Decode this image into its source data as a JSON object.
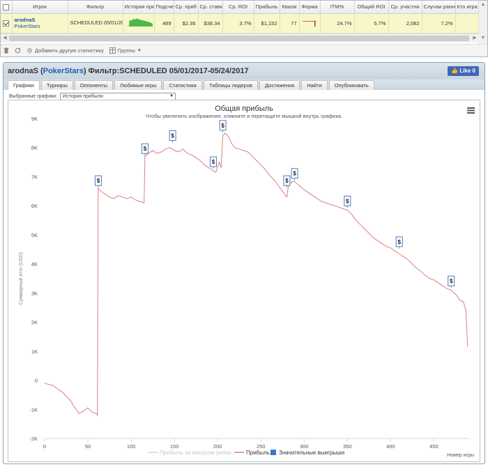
{
  "stats": {
    "columns": [
      "Игрок",
      "Фильтр",
      "История при",
      "Подсчет",
      "Ср. приб",
      "Ср. ставк",
      "Ср. ROI",
      "Прибыль",
      "Квали",
      "Форма",
      "ITM%",
      "Общий ROI",
      "Ср. участни",
      "Случаи ранне",
      "Кто игра"
    ],
    "row": {
      "checked": true,
      "player": "arodnaS",
      "site": "PokerStars",
      "filter": "SCHEDULED 05/01/2017-05/24/2017",
      "count": "489",
      "avg_profit": "$2.36",
      "avg_stake": "$38.34",
      "avg_roi": "3.7%",
      "profit": "$1,152",
      "quali": "77",
      "itm": "24.7%",
      "total_roi": "5.7%",
      "avg_entrants": "2,082",
      "early": "7.2%"
    }
  },
  "toolbar": {
    "add_stat": "Добавить другую статистику",
    "groups": "Группы"
  },
  "report": {
    "player": "arodnaS",
    "site": "PokerStars",
    "filter_label": "Фильтр:",
    "filter_value": "SCHEDULED 05/01/2017-05/24/2017",
    "like_label": "Like 0",
    "tabs": [
      "Графики",
      "Турниры",
      "Оппоненты",
      "Любимые игры",
      "Статистика",
      "Таблицы лидеров",
      "Достижения",
      "Найти",
      "Опубликовать"
    ],
    "active_tab": 0,
    "chart_select_label": "Выбранные графики:",
    "chart_select_value": "История прибыли"
  },
  "colors": {
    "line": "#d98080",
    "marker_border": "#4a7cc7",
    "legend_big_win": "#3a78c9",
    "axis_text": "#555555"
  },
  "chart_data": {
    "type": "line",
    "title": "Общая прибыль",
    "subtitle": "Чтобы увеличить изображение, кликните и перетащите мышкой внутрь графика.",
    "xlabel": "Номер игры",
    "ylabel": "Суммарный итог (USD)",
    "xlim": [
      0,
      490
    ],
    "ylim": [
      -2000,
      9000
    ],
    "x_ticks": [
      0,
      50,
      100,
      150,
      200,
      250,
      300,
      350,
      400,
      450
    ],
    "y_ticks": [
      -2000,
      -1000,
      0,
      1000,
      2000,
      3000,
      4000,
      5000,
      6000,
      7000,
      8000,
      9000
    ],
    "y_tick_labels": [
      "-2K",
      "-1K",
      "0",
      "1K",
      "2K",
      "3K",
      "4K",
      "5K",
      "6K",
      "7K",
      "8K",
      "9K"
    ],
    "legend": [
      "Прибыль за минусом рейка",
      "Прибыль",
      "Значительные выигрыши"
    ],
    "series": [
      {
        "name": "Прибыль",
        "points": [
          [
            0,
            -100
          ],
          [
            5,
            -150
          ],
          [
            10,
            -180
          ],
          [
            15,
            -300
          ],
          [
            20,
            -400
          ],
          [
            25,
            -550
          ],
          [
            30,
            -700
          ],
          [
            35,
            -950
          ],
          [
            40,
            -1150
          ],
          [
            45,
            -1050
          ],
          [
            50,
            -950
          ],
          [
            55,
            -1100
          ],
          [
            60,
            -1150
          ],
          [
            61,
            -1200
          ],
          [
            62,
            6600
          ],
          [
            65,
            6500
          ],
          [
            70,
            6400
          ],
          [
            75,
            6300
          ],
          [
            80,
            6250
          ],
          [
            85,
            6350
          ],
          [
            90,
            6300
          ],
          [
            95,
            6250
          ],
          [
            100,
            6300
          ],
          [
            105,
            6200
          ],
          [
            110,
            6150
          ],
          [
            115,
            6100
          ],
          [
            116,
            7700
          ],
          [
            120,
            7800
          ],
          [
            125,
            7900
          ],
          [
            130,
            7800
          ],
          [
            135,
            7850
          ],
          [
            140,
            7950
          ],
          [
            145,
            8000
          ],
          [
            150,
            7900
          ],
          [
            155,
            7850
          ],
          [
            160,
            7950
          ],
          [
            165,
            7800
          ],
          [
            170,
            7750
          ],
          [
            175,
            7650
          ],
          [
            180,
            7550
          ],
          [
            185,
            7400
          ],
          [
            190,
            7300
          ],
          [
            195,
            7200
          ],
          [
            198,
            7150
          ],
          [
            200,
            7350
          ],
          [
            202,
            7500
          ],
          [
            204,
            7300
          ],
          [
            206,
            8400
          ],
          [
            208,
            8500
          ],
          [
            212,
            8400
          ],
          [
            216,
            8150
          ],
          [
            220,
            8000
          ],
          [
            225,
            7950
          ],
          [
            230,
            7900
          ],
          [
            235,
            7850
          ],
          [
            240,
            7700
          ],
          [
            245,
            7550
          ],
          [
            250,
            7400
          ],
          [
            255,
            7250
          ],
          [
            260,
            7050
          ],
          [
            265,
            6900
          ],
          [
            270,
            6700
          ],
          [
            275,
            6500
          ],
          [
            280,
            6300
          ],
          [
            282,
            6700
          ],
          [
            285,
            6800
          ],
          [
            288,
            6850
          ],
          [
            292,
            6750
          ],
          [
            296,
            6650
          ],
          [
            300,
            6550
          ],
          [
            305,
            6450
          ],
          [
            310,
            6350
          ],
          [
            315,
            6250
          ],
          [
            320,
            6150
          ],
          [
            325,
            6100
          ],
          [
            330,
            6050
          ],
          [
            335,
            6000
          ],
          [
            340,
            5950
          ],
          [
            345,
            5900
          ],
          [
            350,
            5850
          ],
          [
            355,
            5700
          ],
          [
            360,
            5500
          ],
          [
            365,
            5350
          ],
          [
            370,
            5200
          ],
          [
            375,
            5050
          ],
          [
            380,
            4900
          ],
          [
            385,
            4800
          ],
          [
            390,
            4700
          ],
          [
            395,
            4600
          ],
          [
            400,
            4550
          ],
          [
            405,
            4450
          ],
          [
            410,
            4350
          ],
          [
            415,
            4250
          ],
          [
            420,
            4150
          ],
          [
            425,
            4000
          ],
          [
            430,
            3850
          ],
          [
            435,
            3750
          ],
          [
            440,
            3600
          ],
          [
            445,
            3500
          ],
          [
            450,
            3450
          ],
          [
            455,
            3350
          ],
          [
            460,
            3250
          ],
          [
            465,
            3150
          ],
          [
            470,
            3100
          ],
          [
            475,
            2950
          ],
          [
            478,
            2850
          ],
          [
            480,
            2750
          ],
          [
            484,
            2700
          ],
          [
            487,
            2400
          ],
          [
            489,
            1150
          ]
        ]
      }
    ],
    "big_win_markers": [
      {
        "x": 62,
        "y": 6600
      },
      {
        "x": 116,
        "y": 7700
      },
      {
        "x": 148,
        "y": 8150
      },
      {
        "x": 195,
        "y": 7250
      },
      {
        "x": 206,
        "y": 8500
      },
      {
        "x": 280,
        "y": 6600
      },
      {
        "x": 289,
        "y": 6850
      },
      {
        "x": 350,
        "y": 5900
      },
      {
        "x": 410,
        "y": 4500
      },
      {
        "x": 470,
        "y": 3150
      }
    ],
    "marker_label": "$",
    "menu_icon": "hamburger-menu-icon",
    "grid": false
  }
}
